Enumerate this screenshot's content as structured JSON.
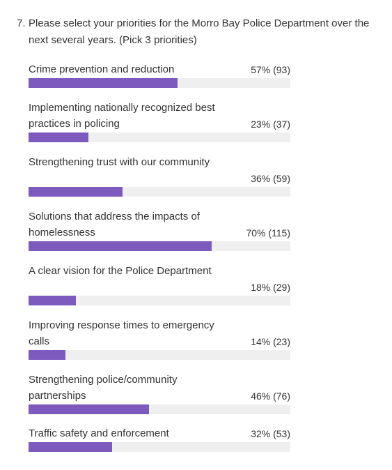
{
  "question": {
    "number": "7.",
    "text": "Please select your priorities for the Morro Bay Police Department over the next several years. (Pick 3 priorities)"
  },
  "options": [
    {
      "label": "Crime prevention and reduction",
      "stat": "57% (93)",
      "percent": 57,
      "count": 93
    },
    {
      "label": "Implementing nationally recognized best practices in policing",
      "stat": "23% (37)",
      "percent": 23,
      "count": 37
    },
    {
      "label": "Strengthening trust with our community",
      "stat": "36% (59)",
      "percent": 36,
      "count": 59
    },
    {
      "label": "Solutions that address the impacts of homelessness",
      "stat": "70% (115)",
      "percent": 70,
      "count": 115
    },
    {
      "label": "A clear vision for the Police Department",
      "stat": "18% (29)",
      "percent": 18,
      "count": 29
    },
    {
      "label": "Improving response times to emergency calls",
      "stat": "14% (23)",
      "percent": 14,
      "count": 23
    },
    {
      "label": "Strengthening police/community partnerships",
      "stat": "46% (76)",
      "percent": 46,
      "count": 76
    },
    {
      "label": "Traffic safety and enforcement",
      "stat": "32% (53)",
      "percent": 32,
      "count": 53
    }
  ],
  "colors": {
    "bar_fill": "#7d5bbe",
    "bar_track": "#efefef",
    "text": "#333333"
  }
}
